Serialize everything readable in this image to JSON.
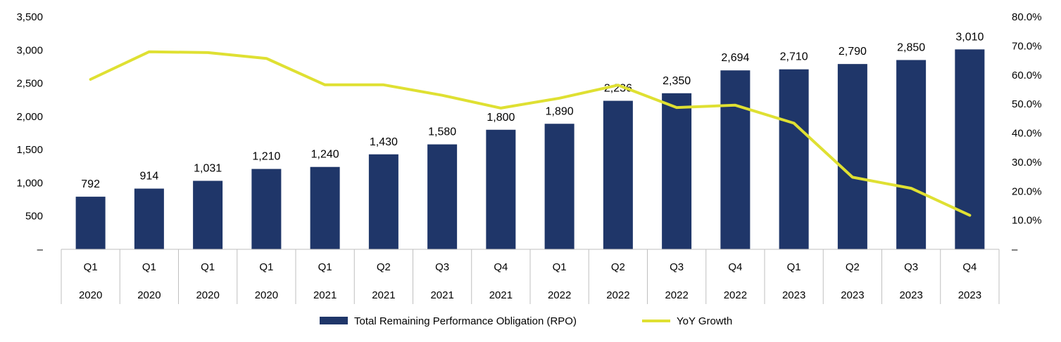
{
  "chart_data": {
    "type": "bar",
    "categories": [
      {
        "quarter": "Q1",
        "year": "2020"
      },
      {
        "quarter": "Q1",
        "year": "2020"
      },
      {
        "quarter": "Q1",
        "year": "2020"
      },
      {
        "quarter": "Q1",
        "year": "2020"
      },
      {
        "quarter": "Q1",
        "year": "2021"
      },
      {
        "quarter": "Q2",
        "year": "2021"
      },
      {
        "quarter": "Q3",
        "year": "2021"
      },
      {
        "quarter": "Q4",
        "year": "2021"
      },
      {
        "quarter": "Q1",
        "year": "2022"
      },
      {
        "quarter": "Q2",
        "year": "2022"
      },
      {
        "quarter": "Q3",
        "year": "2022"
      },
      {
        "quarter": "Q4",
        "year": "2022"
      },
      {
        "quarter": "Q1",
        "year": "2023"
      },
      {
        "quarter": "Q2",
        "year": "2023"
      },
      {
        "quarter": "Q3",
        "year": "2023"
      },
      {
        "quarter": "Q4",
        "year": "2023"
      }
    ],
    "series": [
      {
        "name": "Total Remaining Performance Obligation (RPO)",
        "type": "bar",
        "axis": "left",
        "color": "#1f3669",
        "values": [
          792,
          914,
          1031,
          1210,
          1240,
          1430,
          1580,
          1800,
          1890,
          2236,
          2350,
          2694,
          2710,
          2790,
          2850,
          3010
        ],
        "labels": [
          "792",
          "914",
          "1,031",
          "1,210",
          "1,240",
          "1,430",
          "1,580",
          "1,800",
          "1,890",
          "2,236",
          "2,350",
          "2,694",
          "2,710",
          "2,790",
          "2,850",
          "3,010"
        ]
      },
      {
        "name": "YoY Growth",
        "type": "line",
        "axis": "right",
        "color": "#dfe032",
        "values": [
          58.5,
          68.0,
          67.7,
          65.7,
          56.6,
          56.6,
          53.0,
          48.6,
          52.0,
          56.5,
          48.8,
          49.6,
          43.4,
          24.8,
          21.0,
          11.7
        ]
      }
    ],
    "y_left": {
      "range": [
        0,
        3500
      ],
      "ticks": [
        0,
        500,
        1000,
        1500,
        2000,
        2500,
        3000,
        3500
      ],
      "tick_labels": [
        "–",
        "500",
        "1,000",
        "1,500",
        "2,000",
        "2,500",
        "3,000",
        "3,500"
      ]
    },
    "y_right": {
      "range": [
        0,
        80
      ],
      "ticks": [
        0,
        10,
        20,
        30,
        40,
        50,
        60,
        70,
        80
      ],
      "tick_labels": [
        "–",
        "10.0%",
        "20.0%",
        "30.0%",
        "40.0%",
        "50.0%",
        "60.0%",
        "70.0%",
        "80.0%"
      ]
    },
    "grid": false,
    "legend": "bottom-center",
    "title": "",
    "xlabel": "",
    "ylabel": ""
  }
}
